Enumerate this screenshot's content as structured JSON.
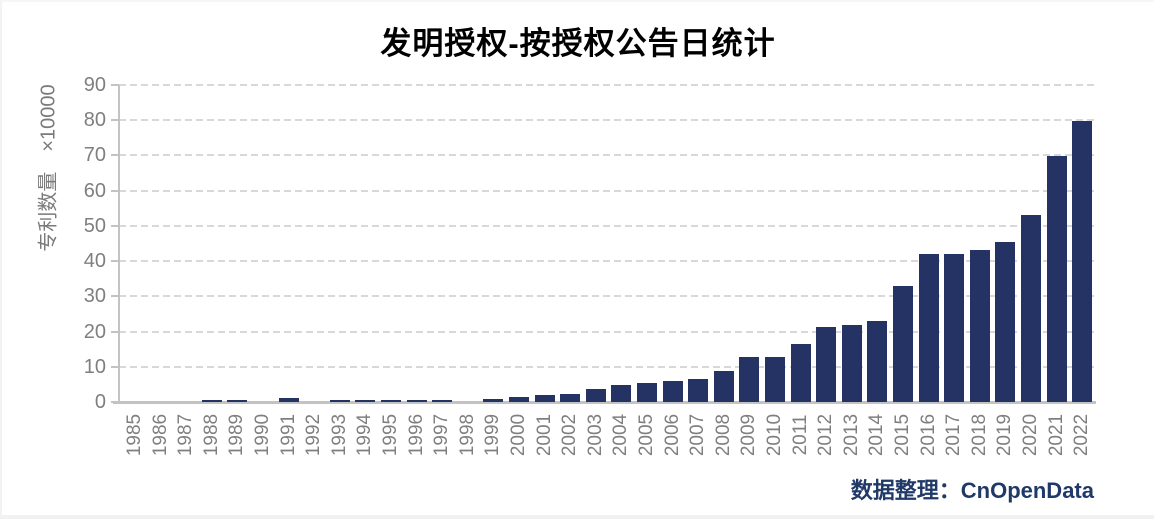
{
  "title": "发明授权-按授权公告日统计",
  "y_axis": {
    "label": "专利数量　×10000"
  },
  "footer": {
    "label": "数据整理：",
    "source": "CnOpenData"
  },
  "colors": {
    "bar": "#243264",
    "grid": "#d8d8d8",
    "axis": "#c3c3c3",
    "tick_text": "#7f7f7f",
    "footer_text": "#213968",
    "title_text": "#000000"
  },
  "chart_data": {
    "type": "bar",
    "title": "发明授权-按授权公告日统计",
    "xlabel": "",
    "ylabel": "专利数量　×10000",
    "unit": "×10000",
    "categories": [
      "1985",
      "1986",
      "1987",
      "1988",
      "1989",
      "1990",
      "1991",
      "1992",
      "1993",
      "1994",
      "1995",
      "1996",
      "1997",
      "1998",
      "1999",
      "2000",
      "2001",
      "2002",
      "2003",
      "2004",
      "2005",
      "2006",
      "2007",
      "2008",
      "2009",
      "2010",
      "2011",
      "2012",
      "2013",
      "2014",
      "2015",
      "2016",
      "2017",
      "2018",
      "2019",
      "2020",
      "2021",
      "2022"
    ],
    "values": [
      0,
      0,
      0,
      0.6,
      0.6,
      0,
      1.2,
      0,
      0.7,
      0.6,
      0.6,
      0.6,
      0.6,
      0,
      0.8,
      1.5,
      2.1,
      2.4,
      3.7,
      4.9,
      5.3,
      6.0,
      6.4,
      8.9,
      12.7,
      12.7,
      16.4,
      21.4,
      22.0,
      23.0,
      33.0,
      41.9,
      41.9,
      43.1,
      45.4,
      53.0,
      69.8,
      79.9
    ],
    "ylim": [
      0,
      90
    ],
    "ytick_step": 10,
    "grid": "horizontal-dashed",
    "legend": "none",
    "bar_color": "#243264"
  }
}
